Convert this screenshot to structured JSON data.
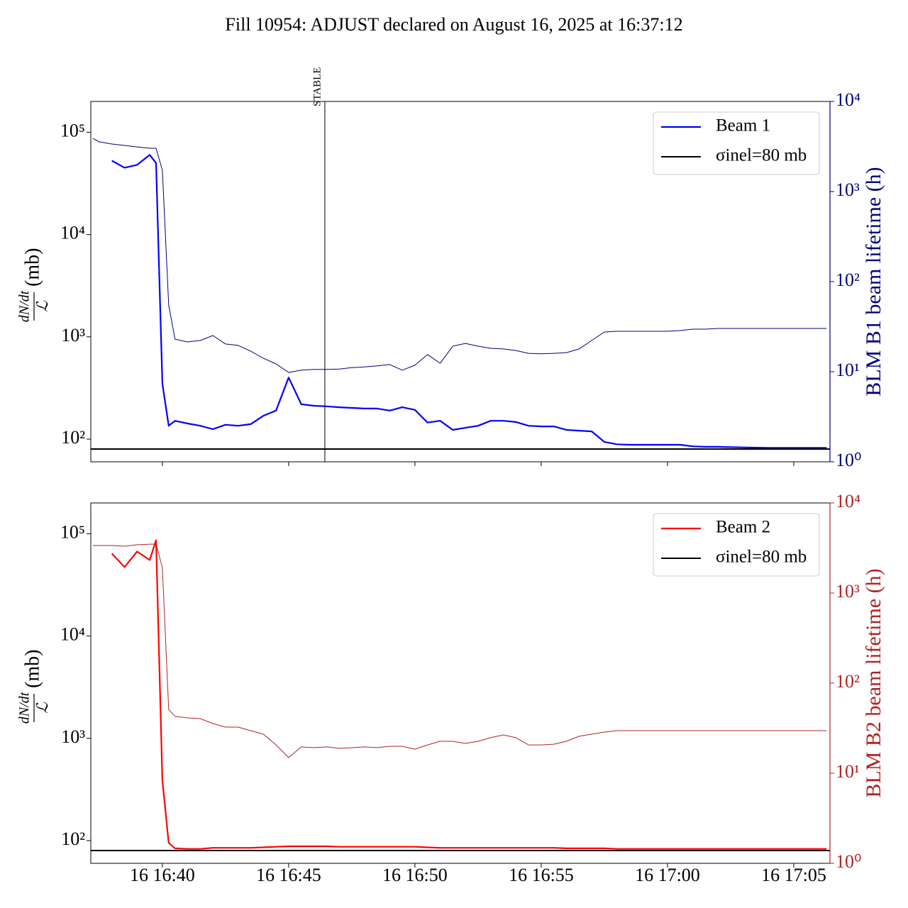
{
  "title": "Fill 10954: ADJUST declared on August 16, 2025 at 16:37:12",
  "chart_data": [
    {
      "type": "line",
      "xlim": [
        "16:37:10",
        "17:06:26"
      ],
      "xticks": [
        "16:40:00",
        "16:45:00",
        "16:50:00",
        "16:55:00",
        "17:00:00",
        "17:05:00"
      ],
      "ylabel": {
        "numerator": "dN/dt",
        "denominator": "ℒ",
        "unit": "(mb)"
      },
      "y2label": "BLM B1 beam lifetime (h)",
      "log_y": true,
      "log_y2": true,
      "ylim": [
        60,
        200000
      ],
      "yticks": [
        {
          "value": 100,
          "label": "10²"
        },
        {
          "value": 1000,
          "label": "10³"
        },
        {
          "value": 10000,
          "label": "10⁴"
        },
        {
          "value": 100000,
          "label": "10⁵"
        }
      ],
      "y2lim": [
        1,
        10000
      ],
      "y2ticks": [
        {
          "value": 1,
          "label": "10⁰"
        },
        {
          "value": 10,
          "label": "10¹"
        },
        {
          "value": 100,
          "label": "10²"
        },
        {
          "value": 1000,
          "label": "10³"
        },
        {
          "value": 10000,
          "label": "10⁴"
        }
      ],
      "y2color": "#000080",
      "legend": "upper right",
      "x": [
        "16:37:15",
        "16:37:30",
        "16:38:00",
        "16:38:30",
        "16:39:00",
        "16:39:30",
        "16:39:45",
        "16:40:00",
        "16:40:15",
        "16:40:30",
        "16:41:00",
        "16:41:30",
        "16:42:00",
        "16:42:30",
        "16:43:00",
        "16:43:30",
        "16:44:00",
        "16:44:30",
        "16:45:00",
        "16:45:30",
        "16:46:00",
        "16:46:30",
        "16:47:00",
        "16:47:30",
        "16:48:00",
        "16:48:30",
        "16:49:00",
        "16:49:30",
        "16:50:00",
        "16:50:30",
        "16:51:00",
        "16:51:30",
        "16:52:00",
        "16:52:30",
        "16:53:00",
        "16:53:30",
        "16:54:00",
        "16:54:30",
        "16:55:00",
        "16:55:30",
        "16:56:00",
        "16:56:30",
        "16:57:00",
        "16:57:30",
        "16:58:00",
        "16:58:30",
        "16:59:00",
        "16:59:30",
        "17:00:00",
        "17:00:30",
        "17:01:00",
        "17:01:30",
        "17:02:00",
        "17:03:00",
        "17:04:00",
        "17:05:00",
        "17:06:00",
        "17:06:18"
      ],
      "series": [
        {
          "name": "Beam 1",
          "color": "#0000ff",
          "width": 2.2,
          "values": [
            null,
            null,
            52700,
            45000,
            48000,
            60000,
            50000,
            350,
            135,
            151,
            142,
            135,
            125,
            138,
            135,
            140,
            169,
            190,
            400,
            219,
            212,
            209,
            205,
            202,
            199,
            199,
            190,
            205,
            193,
            145,
            151,
            123,
            129,
            135,
            151,
            151,
            147,
            135,
            133,
            133,
            123,
            121,
            119,
            94,
            89,
            88,
            88,
            88,
            88,
            88,
            85,
            84,
            84,
            83,
            82,
            82,
            82,
            82
          ]
        },
        {
          "axis": "y2",
          "color": "#000080",
          "width": 1,
          "values": [
            3890,
            3560,
            3370,
            3250,
            3130,
            3020,
            3020,
            1720,
            55,
            23,
            21.4,
            22.2,
            25.2,
            20.3,
            19.6,
            16.9,
            14.1,
            12.2,
            9.8,
            10.4,
            10.6,
            10.6,
            10.7,
            11.1,
            11.3,
            11.6,
            12.0,
            10.4,
            11.8,
            15.5,
            12.4,
            19.2,
            20.6,
            19.2,
            18.2,
            17.9,
            17.2,
            16.0,
            15.8,
            16.0,
            16.3,
            17.9,
            22.2,
            27.6,
            28.1,
            28.1,
            28.1,
            28.1,
            28.1,
            28.6,
            29.7,
            29.7,
            30.2,
            30.2,
            30.2,
            30.2,
            30.2,
            30.2
          ]
        }
      ],
      "hlines": [
        {
          "name": "σinel=80 mb",
          "value": 80,
          "color": "#000000"
        }
      ],
      "vlines": [
        {
          "x": "16:46:26",
          "text": "STABLE"
        }
      ]
    },
    {
      "type": "line",
      "xlim": [
        "16:37:10",
        "17:06:26"
      ],
      "xticks": [
        {
          "value": "16:40:00",
          "label": "16 16:40"
        },
        {
          "value": "16:45:00",
          "label": "16 16:45"
        },
        {
          "value": "16:50:00",
          "label": "16 16:50"
        },
        {
          "value": "16:55:00",
          "label": "16 16:55"
        },
        {
          "value": "17:00:00",
          "label": "16 17:00"
        },
        {
          "value": "17:05:00",
          "label": "16 17:05"
        }
      ],
      "ylabel": {
        "numerator": "dN/dt",
        "denominator": "ℒ",
        "unit": "(mb)"
      },
      "y2label": "BLM B2 beam lifetime (h)",
      "log_y": true,
      "log_y2": true,
      "ylim": [
        60,
        200000
      ],
      "yticks": [
        {
          "value": 100,
          "label": "10²"
        },
        {
          "value": 1000,
          "label": "10³"
        },
        {
          "value": 10000,
          "label": "10⁴"
        },
        {
          "value": 100000,
          "label": "10⁵"
        }
      ],
      "y2lim": [
        1,
        10000
      ],
      "y2ticks": [
        {
          "value": 1,
          "label": "10⁰"
        },
        {
          "value": 10,
          "label": "10¹"
        },
        {
          "value": 100,
          "label": "10²"
        },
        {
          "value": 1000,
          "label": "10³"
        },
        {
          "value": 10000,
          "label": "10⁴"
        }
      ],
      "y2color": "#b22222",
      "legend": "upper right",
      "x": [
        "16:37:15",
        "16:37:30",
        "16:38:00",
        "16:38:30",
        "16:39:00",
        "16:39:30",
        "16:39:45",
        "16:40:00",
        "16:40:15",
        "16:40:30",
        "16:41:00",
        "16:41:30",
        "16:42:00",
        "16:42:30",
        "16:43:00",
        "16:43:30",
        "16:44:00",
        "16:44:30",
        "16:45:00",
        "16:45:30",
        "16:46:00",
        "16:46:30",
        "16:47:00",
        "16:47:30",
        "16:48:00",
        "16:48:30",
        "16:49:00",
        "16:49:30",
        "16:50:00",
        "16:50:30",
        "16:51:00",
        "16:51:30",
        "16:52:00",
        "16:52:30",
        "16:53:00",
        "16:53:30",
        "16:54:00",
        "16:54:30",
        "16:55:00",
        "16:55:30",
        "16:56:00",
        "16:56:30",
        "16:57:00",
        "16:57:30",
        "16:58:00",
        "16:58:30",
        "16:59:00",
        "16:59:30",
        "17:00:00",
        "17:00:30",
        "17:01:00",
        "17:01:30",
        "17:02:00",
        "17:03:00",
        "17:04:00",
        "17:05:00",
        "17:06:00",
        "17:06:18"
      ],
      "series": [
        {
          "name": "Beam 2",
          "color": "#ff0000",
          "width": 2.2,
          "values": [
            null,
            null,
            64000,
            47200,
            67000,
            55300,
            86500,
            389,
            95,
            84,
            83,
            83,
            85,
            85,
            85,
            85,
            86,
            87,
            88,
            88,
            88,
            88,
            87,
            87,
            87,
            87,
            87,
            87,
            87,
            86,
            85,
            85,
            85,
            85,
            85,
            85,
            85,
            85,
            85,
            85,
            84,
            84,
            84,
            84,
            83,
            83,
            83,
            83,
            83,
            83,
            83,
            83,
            83,
            83,
            83,
            83,
            83,
            83
          ]
        },
        {
          "axis": "y2",
          "color": "#b22222",
          "width": 1,
          "values": [
            3370,
            3370,
            3370,
            3310,
            3430,
            3490,
            3490,
            1920,
            51,
            42.7,
            41.1,
            40.4,
            35.6,
            32.5,
            32.5,
            29.7,
            27.1,
            20.6,
            14.9,
            19.6,
            19.2,
            19.6,
            18.9,
            19.2,
            19.6,
            19.2,
            19.9,
            19.9,
            18.5,
            20.6,
            22.6,
            22.6,
            21.4,
            22.6,
            24.8,
            26.6,
            24.8,
            20.6,
            20.6,
            21.0,
            22.6,
            25.7,
            27.1,
            28.6,
            29.7,
            29.7,
            29.7,
            29.7,
            29.7,
            29.7,
            29.7,
            29.7,
            29.7,
            29.7,
            29.7,
            29.7,
            29.7,
            29.7
          ]
        }
      ],
      "hlines": [
        {
          "name": "σinel=80 mb",
          "value": 80,
          "color": "#000000"
        }
      ]
    }
  ]
}
